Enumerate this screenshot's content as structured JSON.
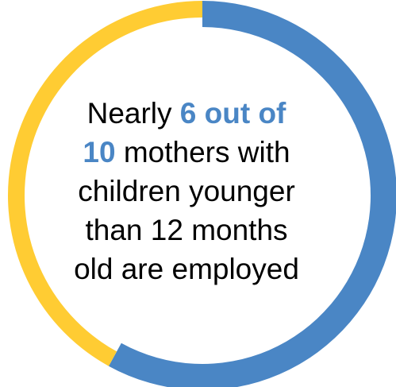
{
  "chart_data": {
    "type": "pie",
    "title": "",
    "slices": [
      {
        "label": "",
        "value": 58,
        "color": "#4A86C5"
      },
      {
        "label": "",
        "value": 42,
        "color": "#FFCC33"
      }
    ]
  },
  "caption": {
    "line1_pre": "Nearly ",
    "line1_highlight": "6 out of",
    "line2_highlight": "10",
    "line2_post": " mothers with",
    "line3": "children younger",
    "line4": "than 12 months",
    "line5": "old are employed"
  },
  "colors": {
    "highlight": "#4A86C5",
    "text": "#000000"
  }
}
